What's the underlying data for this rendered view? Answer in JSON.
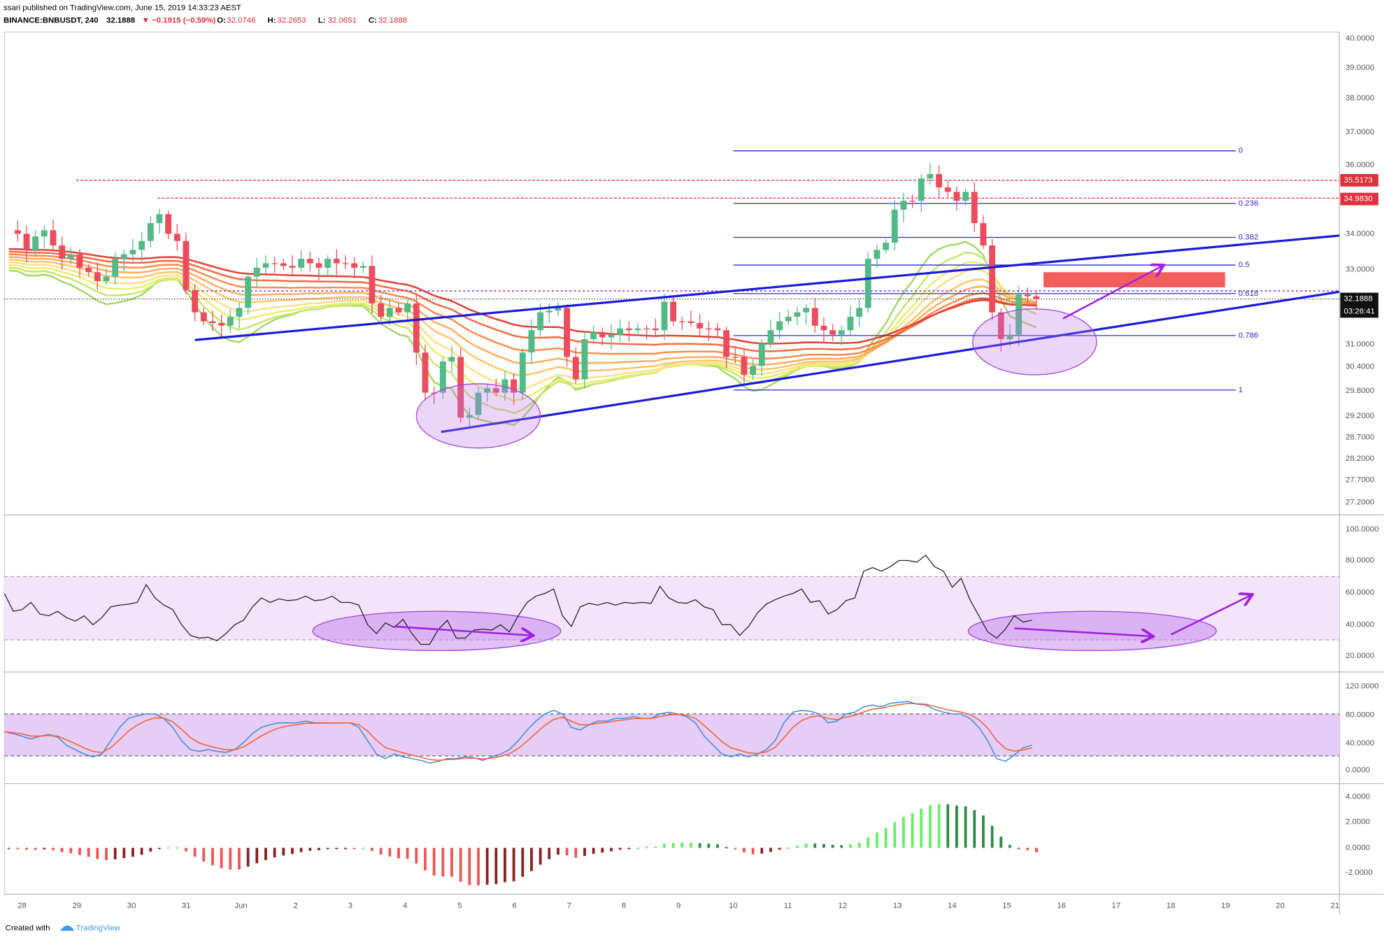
{
  "header": {
    "publisher": "ssari published on TradingView.com, June 15, 2019 14:33:23 AEST",
    "symbol": "BINANCE:BNBUSDT, 240",
    "last": "32.1888",
    "change": "▼ −0.1915 (−0.59%)",
    "ohlc": [
      {
        "label": "O:",
        "value": "32.0746"
      },
      {
        "label": "H:",
        "value": "32.2653"
      },
      {
        "label": "L:",
        "value": "32.0651"
      },
      {
        "label": "C:",
        "value": "32.1888"
      }
    ]
  },
  "price_axis": [
    "40.0000",
    "39.0000",
    "38.0000",
    "37.0000",
    "36.0000",
    "34.0000",
    "33.0000",
    "31.0000",
    "30.4000",
    "29.8000",
    "29.2000",
    "28.7000",
    "28.2000",
    "27.7000",
    "27.2000"
  ],
  "price_tags": [
    "35.5173",
    "34.9830",
    "32.1888",
    "03:26:41"
  ],
  "fib_levels": [
    "0",
    "0.236",
    "0.382",
    "0.5",
    "0.618",
    "0.786",
    "1"
  ],
  "rsi_axis": [
    "100.0000",
    "80.0000",
    "60.0000",
    "40.0000",
    "20.0000"
  ],
  "stoch_axis": [
    "120.0000",
    "80.0000",
    "40.0000",
    "0.0000"
  ],
  "macd_axis": [
    "4.0000",
    "2.0000",
    "0.0000",
    "-2.0000"
  ],
  "time_axis": [
    "28",
    "29",
    "30",
    "31",
    "Jun",
    "2",
    "3",
    "4",
    "5",
    "6",
    "7",
    "8",
    "9",
    "10",
    "11",
    "12",
    "13",
    "14",
    "15",
    "16",
    "17",
    "18",
    "19",
    "20",
    "21"
  ],
  "footer": {
    "created": "Created with",
    "brand": "TradingView"
  }
}
